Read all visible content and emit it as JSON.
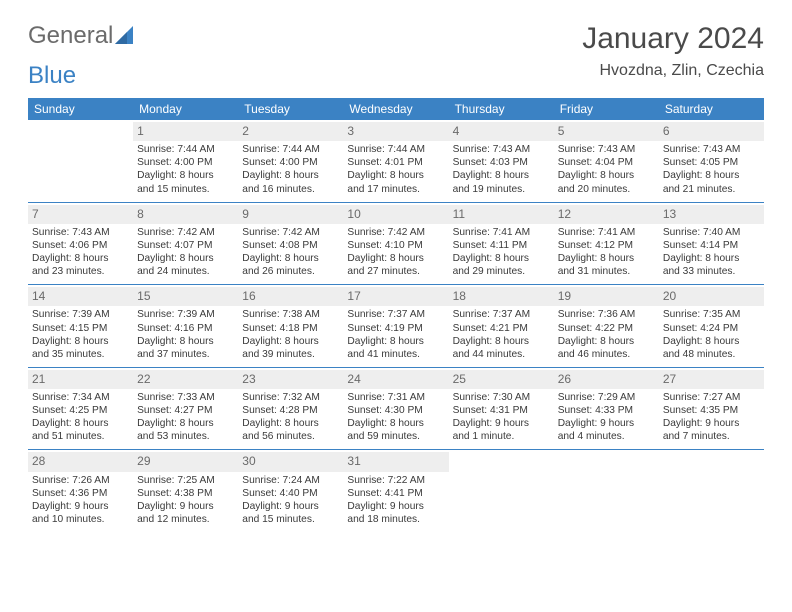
{
  "logo": {
    "word1": "General",
    "word2": "Blue"
  },
  "title": "January 2024",
  "location": "Hvozdna, Zlin, Czechia",
  "colors": {
    "header_bg": "#3b82c4",
    "header_text": "#ffffff",
    "daynum_bg": "#eeeeee",
    "daynum_text": "#6a6a6a",
    "body_text": "#3a3a3a",
    "rule": "#3b82c4",
    "page_bg": "#ffffff",
    "logo_gray": "#6b6b6b",
    "logo_blue": "#3b82c4"
  },
  "typography": {
    "title_fontsize": 30,
    "location_fontsize": 16,
    "dayheader_fontsize": 12,
    "daynum_fontsize": 12,
    "cell_fontsize": 10.2,
    "logo_fontsize": 24
  },
  "day_headers": [
    "Sunday",
    "Monday",
    "Tuesday",
    "Wednesday",
    "Thursday",
    "Friday",
    "Saturday"
  ],
  "weeks": [
    [
      {
        "blank": true
      },
      {
        "n": "1",
        "sr": "Sunrise: 7:44 AM",
        "ss": "Sunset: 4:00 PM",
        "dl1": "Daylight: 8 hours",
        "dl2": "and 15 minutes."
      },
      {
        "n": "2",
        "sr": "Sunrise: 7:44 AM",
        "ss": "Sunset: 4:00 PM",
        "dl1": "Daylight: 8 hours",
        "dl2": "and 16 minutes."
      },
      {
        "n": "3",
        "sr": "Sunrise: 7:44 AM",
        "ss": "Sunset: 4:01 PM",
        "dl1": "Daylight: 8 hours",
        "dl2": "and 17 minutes."
      },
      {
        "n": "4",
        "sr": "Sunrise: 7:43 AM",
        "ss": "Sunset: 4:03 PM",
        "dl1": "Daylight: 8 hours",
        "dl2": "and 19 minutes."
      },
      {
        "n": "5",
        "sr": "Sunrise: 7:43 AM",
        "ss": "Sunset: 4:04 PM",
        "dl1": "Daylight: 8 hours",
        "dl2": "and 20 minutes."
      },
      {
        "n": "6",
        "sr": "Sunrise: 7:43 AM",
        "ss": "Sunset: 4:05 PM",
        "dl1": "Daylight: 8 hours",
        "dl2": "and 21 minutes."
      }
    ],
    [
      {
        "n": "7",
        "sr": "Sunrise: 7:43 AM",
        "ss": "Sunset: 4:06 PM",
        "dl1": "Daylight: 8 hours",
        "dl2": "and 23 minutes."
      },
      {
        "n": "8",
        "sr": "Sunrise: 7:42 AM",
        "ss": "Sunset: 4:07 PM",
        "dl1": "Daylight: 8 hours",
        "dl2": "and 24 minutes."
      },
      {
        "n": "9",
        "sr": "Sunrise: 7:42 AM",
        "ss": "Sunset: 4:08 PM",
        "dl1": "Daylight: 8 hours",
        "dl2": "and 26 minutes."
      },
      {
        "n": "10",
        "sr": "Sunrise: 7:42 AM",
        "ss": "Sunset: 4:10 PM",
        "dl1": "Daylight: 8 hours",
        "dl2": "and 27 minutes."
      },
      {
        "n": "11",
        "sr": "Sunrise: 7:41 AM",
        "ss": "Sunset: 4:11 PM",
        "dl1": "Daylight: 8 hours",
        "dl2": "and 29 minutes."
      },
      {
        "n": "12",
        "sr": "Sunrise: 7:41 AM",
        "ss": "Sunset: 4:12 PM",
        "dl1": "Daylight: 8 hours",
        "dl2": "and 31 minutes."
      },
      {
        "n": "13",
        "sr": "Sunrise: 7:40 AM",
        "ss": "Sunset: 4:14 PM",
        "dl1": "Daylight: 8 hours",
        "dl2": "and 33 minutes."
      }
    ],
    [
      {
        "n": "14",
        "sr": "Sunrise: 7:39 AM",
        "ss": "Sunset: 4:15 PM",
        "dl1": "Daylight: 8 hours",
        "dl2": "and 35 minutes."
      },
      {
        "n": "15",
        "sr": "Sunrise: 7:39 AM",
        "ss": "Sunset: 4:16 PM",
        "dl1": "Daylight: 8 hours",
        "dl2": "and 37 minutes."
      },
      {
        "n": "16",
        "sr": "Sunrise: 7:38 AM",
        "ss": "Sunset: 4:18 PM",
        "dl1": "Daylight: 8 hours",
        "dl2": "and 39 minutes."
      },
      {
        "n": "17",
        "sr": "Sunrise: 7:37 AM",
        "ss": "Sunset: 4:19 PM",
        "dl1": "Daylight: 8 hours",
        "dl2": "and 41 minutes."
      },
      {
        "n": "18",
        "sr": "Sunrise: 7:37 AM",
        "ss": "Sunset: 4:21 PM",
        "dl1": "Daylight: 8 hours",
        "dl2": "and 44 minutes."
      },
      {
        "n": "19",
        "sr": "Sunrise: 7:36 AM",
        "ss": "Sunset: 4:22 PM",
        "dl1": "Daylight: 8 hours",
        "dl2": "and 46 minutes."
      },
      {
        "n": "20",
        "sr": "Sunrise: 7:35 AM",
        "ss": "Sunset: 4:24 PM",
        "dl1": "Daylight: 8 hours",
        "dl2": "and 48 minutes."
      }
    ],
    [
      {
        "n": "21",
        "sr": "Sunrise: 7:34 AM",
        "ss": "Sunset: 4:25 PM",
        "dl1": "Daylight: 8 hours",
        "dl2": "and 51 minutes."
      },
      {
        "n": "22",
        "sr": "Sunrise: 7:33 AM",
        "ss": "Sunset: 4:27 PM",
        "dl1": "Daylight: 8 hours",
        "dl2": "and 53 minutes."
      },
      {
        "n": "23",
        "sr": "Sunrise: 7:32 AM",
        "ss": "Sunset: 4:28 PM",
        "dl1": "Daylight: 8 hours",
        "dl2": "and 56 minutes."
      },
      {
        "n": "24",
        "sr": "Sunrise: 7:31 AM",
        "ss": "Sunset: 4:30 PM",
        "dl1": "Daylight: 8 hours",
        "dl2": "and 59 minutes."
      },
      {
        "n": "25",
        "sr": "Sunrise: 7:30 AM",
        "ss": "Sunset: 4:31 PM",
        "dl1": "Daylight: 9 hours",
        "dl2": "and 1 minute."
      },
      {
        "n": "26",
        "sr": "Sunrise: 7:29 AM",
        "ss": "Sunset: 4:33 PM",
        "dl1": "Daylight: 9 hours",
        "dl2": "and 4 minutes."
      },
      {
        "n": "27",
        "sr": "Sunrise: 7:27 AM",
        "ss": "Sunset: 4:35 PM",
        "dl1": "Daylight: 9 hours",
        "dl2": "and 7 minutes."
      }
    ],
    [
      {
        "n": "28",
        "sr": "Sunrise: 7:26 AM",
        "ss": "Sunset: 4:36 PM",
        "dl1": "Daylight: 9 hours",
        "dl2": "and 10 minutes."
      },
      {
        "n": "29",
        "sr": "Sunrise: 7:25 AM",
        "ss": "Sunset: 4:38 PM",
        "dl1": "Daylight: 9 hours",
        "dl2": "and 12 minutes."
      },
      {
        "n": "30",
        "sr": "Sunrise: 7:24 AM",
        "ss": "Sunset: 4:40 PM",
        "dl1": "Daylight: 9 hours",
        "dl2": "and 15 minutes."
      },
      {
        "n": "31",
        "sr": "Sunrise: 7:22 AM",
        "ss": "Sunset: 4:41 PM",
        "dl1": "Daylight: 9 hours",
        "dl2": "and 18 minutes."
      },
      {
        "blank": true
      },
      {
        "blank": true
      },
      {
        "blank": true
      }
    ]
  ]
}
